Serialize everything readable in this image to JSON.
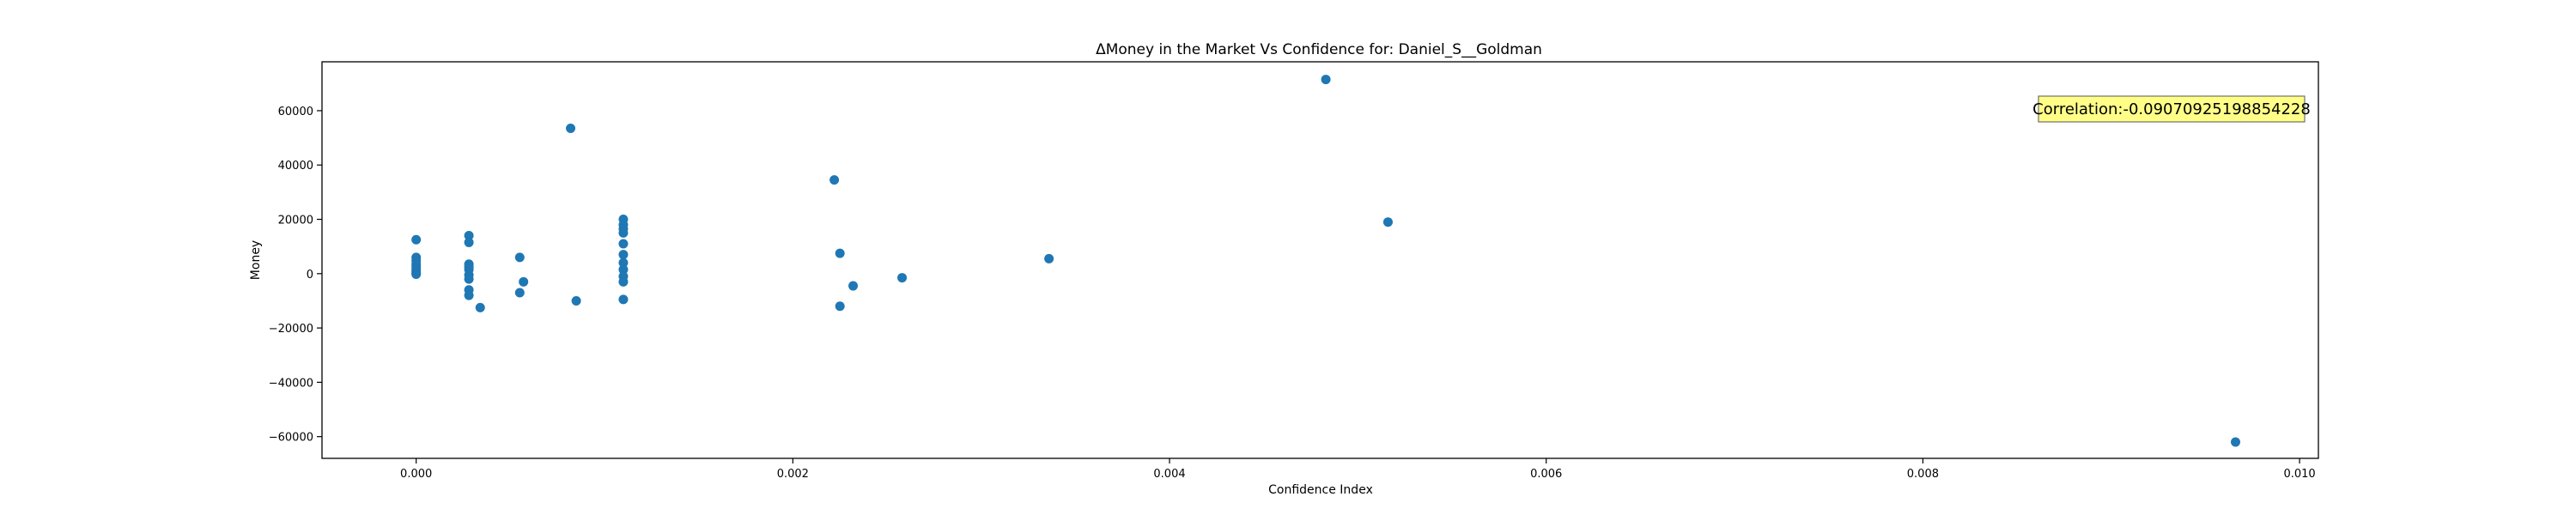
{
  "chart_data": {
    "type": "scatter",
    "title": "ΔMoney in the Market Vs Confidence for: Daniel_S__Goldman",
    "xlabel": "Confidence Index",
    "ylabel": "Money",
    "xlim": [
      -0.0005,
      0.0101
    ],
    "ylim": [
      -68000,
      78000
    ],
    "x_ticks": [
      "0.000",
      "0.002",
      "0.004",
      "0.006",
      "0.008",
      "0.010"
    ],
    "y_ticks": [
      "−60000",
      "−40000",
      "−20000",
      "0",
      "20000",
      "40000",
      "60000"
    ],
    "grid": false,
    "point_color": "#1f77b4",
    "annotation": "Correlation:-0.09070925198854228",
    "annotation_bg": "#ffff88",
    "points": [
      [
        0.0,
        12500
      ],
      [
        0.0,
        6000
      ],
      [
        0.0,
        4800
      ],
      [
        0.0,
        3500
      ],
      [
        0.0,
        2500
      ],
      [
        0.0,
        1500
      ],
      [
        0.0,
        800
      ],
      [
        0.0,
        200
      ],
      [
        0.0,
        -200
      ],
      [
        0.00028,
        14000
      ],
      [
        0.00028,
        11500
      ],
      [
        0.00028,
        3500
      ],
      [
        0.00028,
        2500
      ],
      [
        0.00028,
        1500
      ],
      [
        0.00028,
        -500
      ],
      [
        0.00028,
        -2000
      ],
      [
        0.00028,
        -6000
      ],
      [
        0.00028,
        -8000
      ],
      [
        0.00034,
        -12500
      ],
      [
        0.00055,
        6000
      ],
      [
        0.00055,
        -7000
      ],
      [
        0.00057,
        -3000
      ],
      [
        0.00082,
        53500
      ],
      [
        0.00085,
        -10000
      ],
      [
        0.0011,
        20000
      ],
      [
        0.0011,
        18000
      ],
      [
        0.0011,
        16500
      ],
      [
        0.0011,
        15000
      ],
      [
        0.0011,
        11000
      ],
      [
        0.0011,
        7000
      ],
      [
        0.0011,
        4000
      ],
      [
        0.0011,
        1500
      ],
      [
        0.0011,
        -1000
      ],
      [
        0.0011,
        -3000
      ],
      [
        0.0011,
        -9500
      ],
      [
        0.00222,
        34500
      ],
      [
        0.00225,
        7500
      ],
      [
        0.00225,
        -12000
      ],
      [
        0.00232,
        -4500
      ],
      [
        0.00258,
        -1500
      ],
      [
        0.00336,
        5500
      ],
      [
        0.00483,
        71500
      ],
      [
        0.00516,
        19000
      ],
      [
        0.00966,
        -62000
      ]
    ]
  }
}
